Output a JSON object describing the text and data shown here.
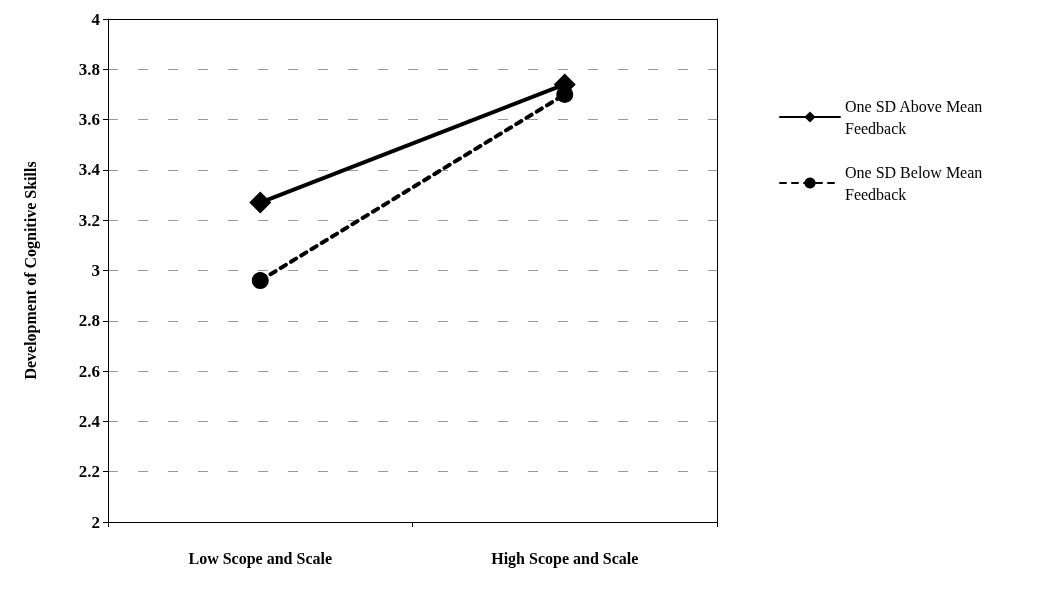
{
  "chart_data": {
    "type": "line",
    "ylabel": "Development of Cognitive Skills",
    "categories": [
      "Low Scope and Scale",
      "High Scope and Scale"
    ],
    "series": [
      {
        "name": "One SD Above Mean Feedback",
        "color": "#000000",
        "values": [
          3.27,
          3.74
        ],
        "marker": "diamond",
        "line_style": "solid"
      },
      {
        "name": "One SD Below Mean Feedback",
        "color": "#000000",
        "values": [
          2.96,
          3.7
        ],
        "marker": "circle",
        "line_style": "dashed"
      }
    ],
    "ylim": [
      2,
      4
    ],
    "yticks": [
      2,
      2.2,
      2.4,
      2.6,
      2.8,
      3,
      3.2,
      3.4,
      3.6,
      3.8,
      4
    ],
    "grid": "y",
    "legend": "right"
  }
}
